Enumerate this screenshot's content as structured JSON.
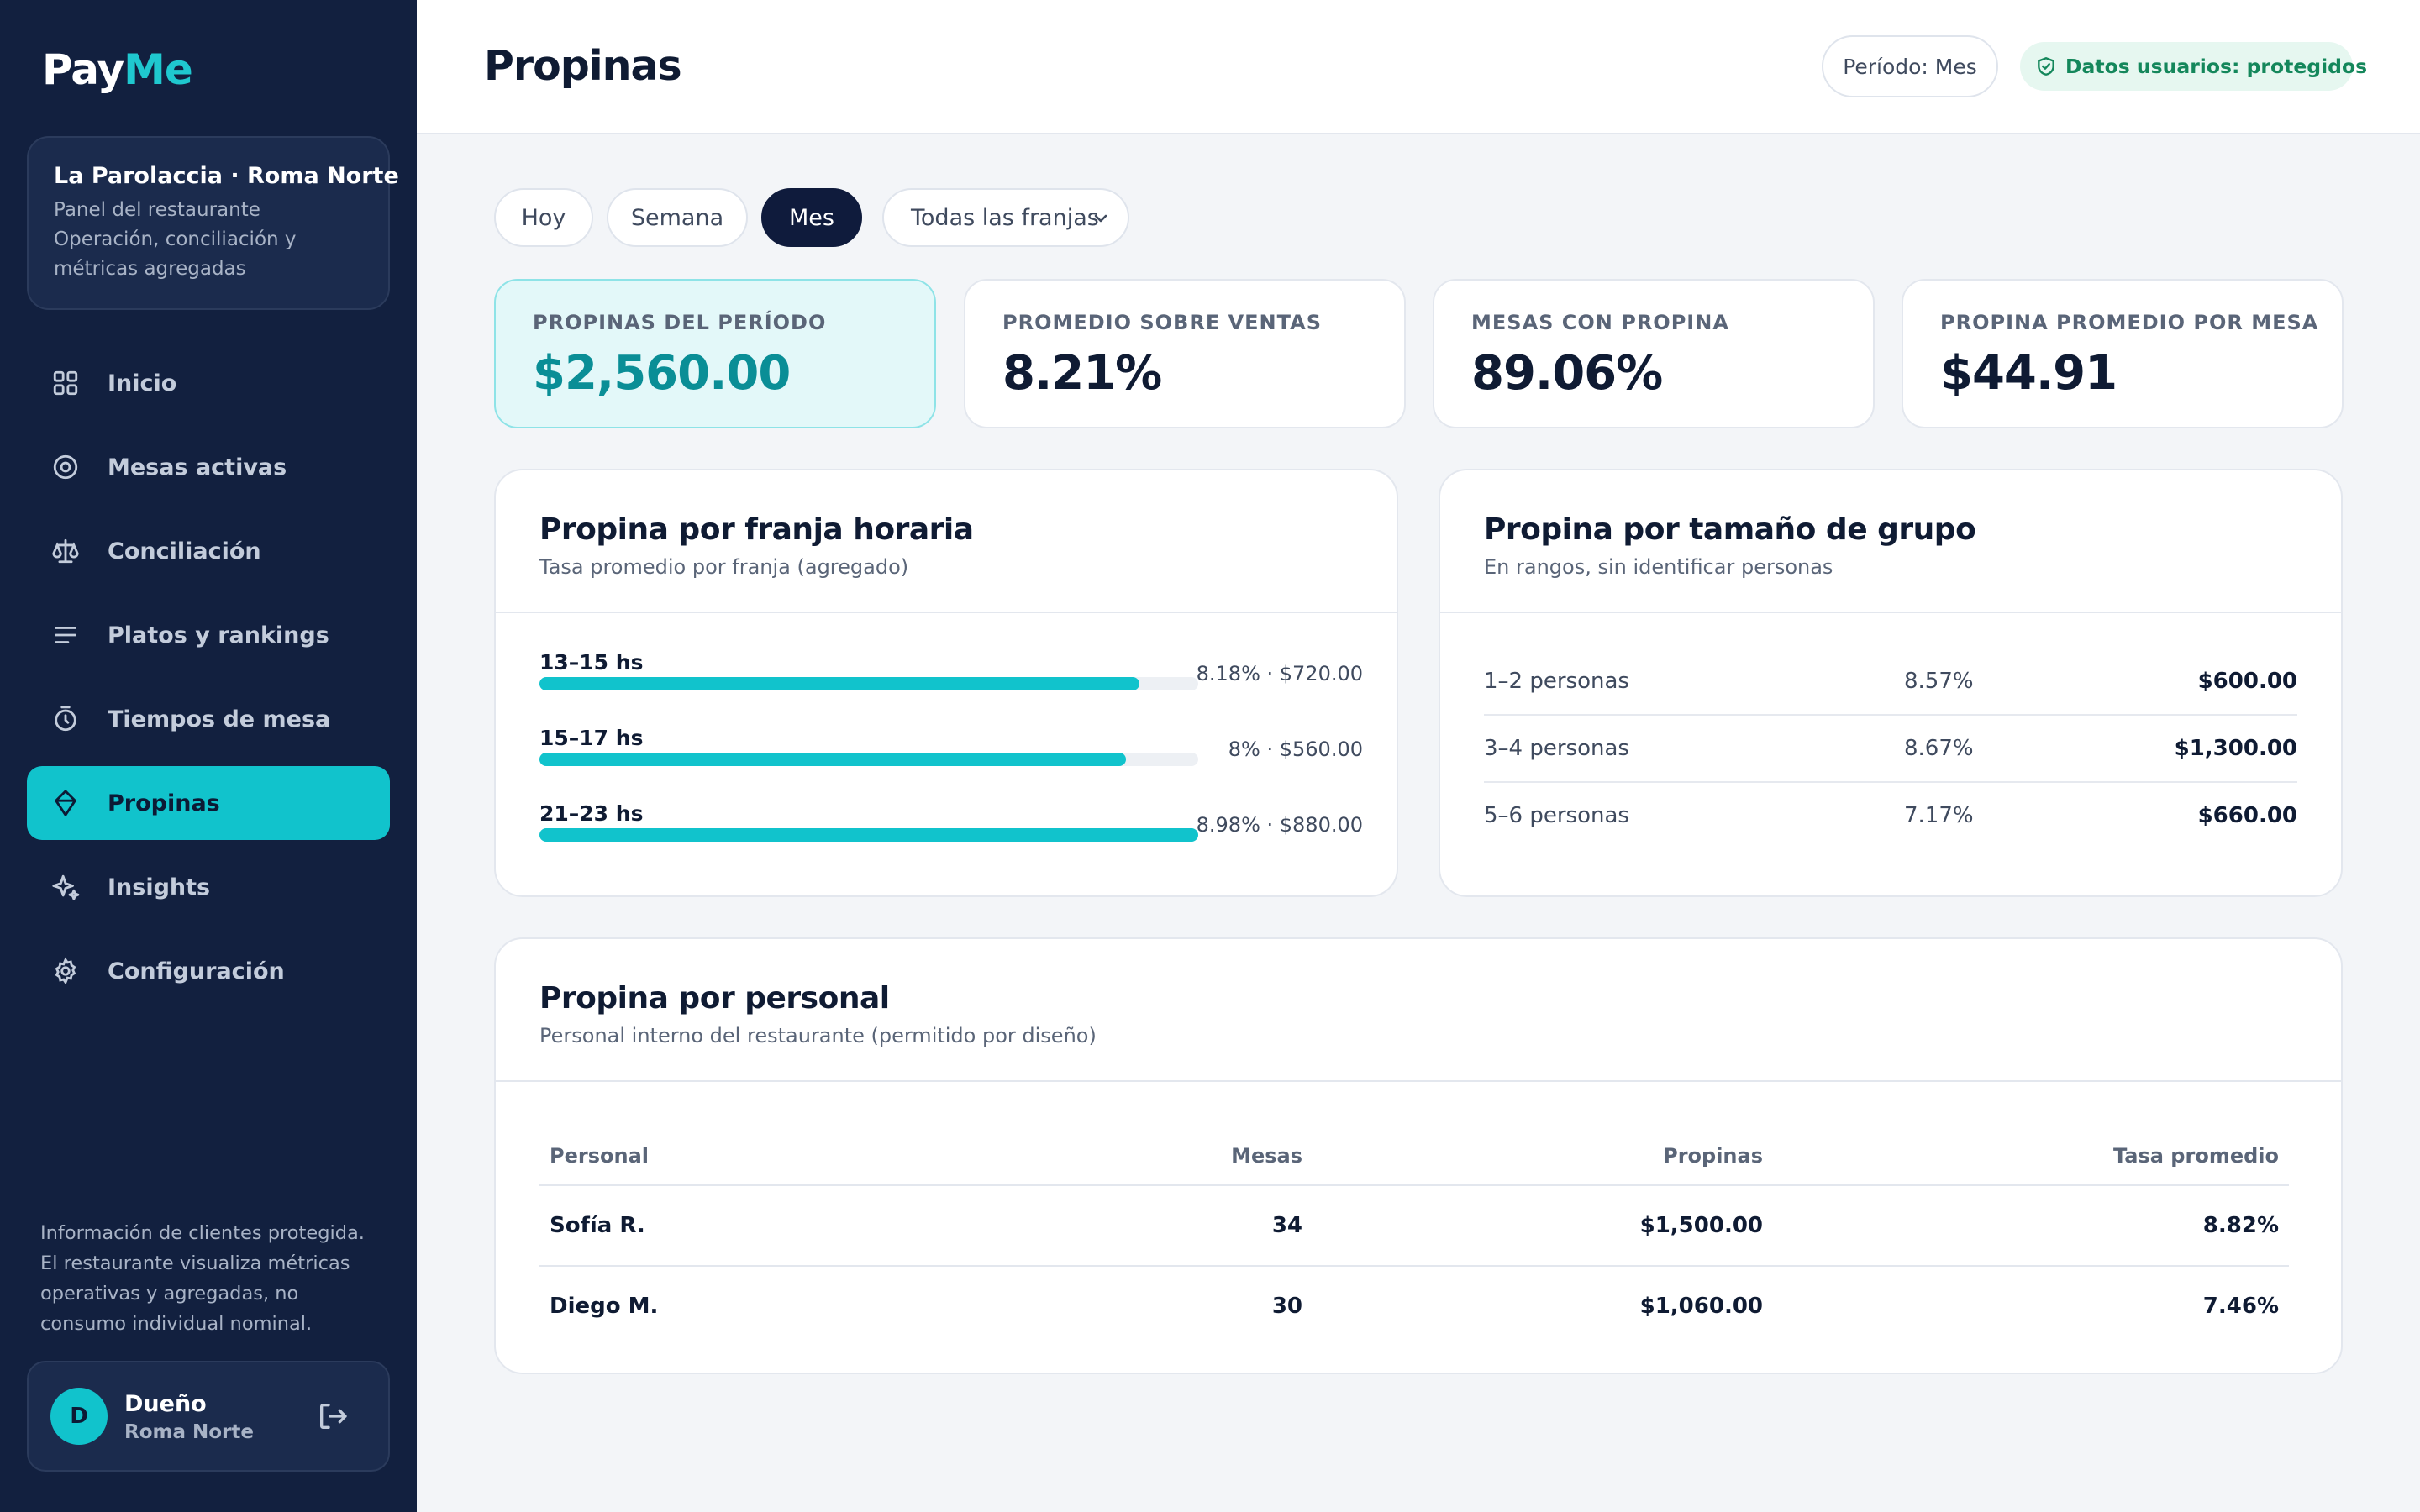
{
  "brand": {
    "pay": "Pay",
    "me": "Me"
  },
  "venue": {
    "name": "La Parolaccia · Roma Norte",
    "role": "Panel del restaurante",
    "description_line1": "Operación, conciliación y",
    "description_line2": "métricas agregadas"
  },
  "nav": [
    {
      "label": "Inicio",
      "icon": "grid-icon"
    },
    {
      "label": "Mesas activas",
      "icon": "target-icon"
    },
    {
      "label": "Conciliación",
      "icon": "scale-icon"
    },
    {
      "label": "Platos y rankings",
      "icon": "list-icon"
    },
    {
      "label": "Tiempos de mesa",
      "icon": "timer-icon"
    },
    {
      "label": "Propinas",
      "icon": "gem-icon",
      "active": true
    },
    {
      "label": "Insights",
      "icon": "sparkles-icon"
    },
    {
      "label": "Configuración",
      "icon": "gear-icon"
    }
  ],
  "sidebar_note": {
    "line1": "Información de clientes protegida.",
    "line2": "El restaurante visualiza métricas",
    "line3": "operativas y agregadas, no",
    "line4": "consumo individual nominal."
  },
  "user": {
    "initial": "D",
    "name": "Dueño",
    "location": "Roma Norte"
  },
  "header": {
    "title": "Propinas",
    "period": "Período: Mes",
    "privacy": "Datos usuarios: protegidos"
  },
  "filters": {
    "options": [
      "Hoy",
      "Semana",
      "Mes"
    ],
    "active": "Mes",
    "franja_selected": "Todas las franjas"
  },
  "kpis": [
    {
      "label": "PROPINAS DEL PERÍODO",
      "value": "$2,560.00"
    },
    {
      "label": "PROMEDIO SOBRE VENTAS",
      "value": "8.21%"
    },
    {
      "label": "MESAS CON PROPINA",
      "value": "89.06%"
    },
    {
      "label": "PROPINA PROMEDIO POR MESA",
      "value": "$44.91"
    }
  ],
  "franjas": {
    "title": "Propina por franja horaria",
    "subtitle": "Tasa promedio por franja (agregado)",
    "rows": [
      {
        "label": "13–15 hs",
        "meta": "8.18% · $720.00",
        "rate": 8.18
      },
      {
        "label": "15–17 hs",
        "meta": "8% · $560.00",
        "rate": 8.0
      },
      {
        "label": "21–23 hs",
        "meta": "8.98% · $880.00",
        "rate": 8.98
      }
    ]
  },
  "grupos": {
    "title": "Propina por tamaño de grupo",
    "subtitle": "En rangos, sin identificar personas",
    "rows": [
      {
        "label": "1–2 personas",
        "rate": "8.57%",
        "amount": "$600.00"
      },
      {
        "label": "3–4 personas",
        "rate": "8.67%",
        "amount": "$1,300.00"
      },
      {
        "label": "5–6 personas",
        "rate": "7.17%",
        "amount": "$660.00"
      }
    ]
  },
  "personal": {
    "title": "Propina por personal",
    "subtitle": "Personal interno del restaurante (permitido por diseño)",
    "columns": [
      "Personal",
      "Mesas",
      "Propinas",
      "Tasa promedio"
    ],
    "rows": [
      {
        "name": "Sofía R.",
        "mesas": "34",
        "propinas": "$1,500.00",
        "tasa": "8.82%"
      },
      {
        "name": "Diego M.",
        "mesas": "30",
        "propinas": "$1,060.00",
        "tasa": "7.46%"
      }
    ]
  },
  "colors": {
    "accent": "#11c3cc",
    "sidebar": "#12203f",
    "navy": "#0f1b3c",
    "success": "#14875b"
  }
}
